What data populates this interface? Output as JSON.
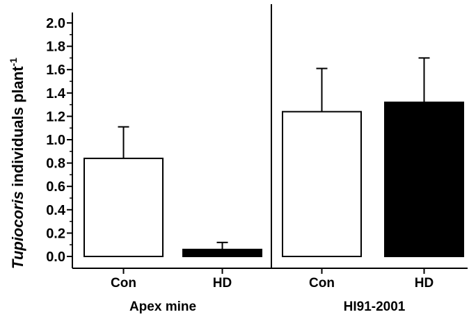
{
  "chart_data": {
    "type": "bar",
    "ylabel_italic": "Tupiocoris",
    "ylabel_main": " individuals plant",
    "ylabel_superscript": "-1",
    "ylim": [
      -0.1,
      2.0
    ],
    "yticks": [
      "0.0",
      "0.2",
      "0.4",
      "0.6",
      "0.8",
      "1.0",
      "1.2",
      "1.4",
      "1.6",
      "1.8",
      "2.0"
    ],
    "groups": [
      {
        "label": "Apex mine",
        "bars": [
          {
            "category": "Con",
            "value": 0.84,
            "error": 0.27,
            "fill": "#ffffff"
          },
          {
            "category": "HD",
            "value": 0.06,
            "error": 0.06,
            "fill": "#000000"
          }
        ]
      },
      {
        "label": "HI91-2001",
        "bars": [
          {
            "category": "Con",
            "value": 1.24,
            "error": 0.37,
            "fill": "#ffffff"
          },
          {
            "category": "HD",
            "value": 1.32,
            "error": 0.38,
            "fill": "#000000"
          }
        ]
      }
    ],
    "grid": false
  }
}
